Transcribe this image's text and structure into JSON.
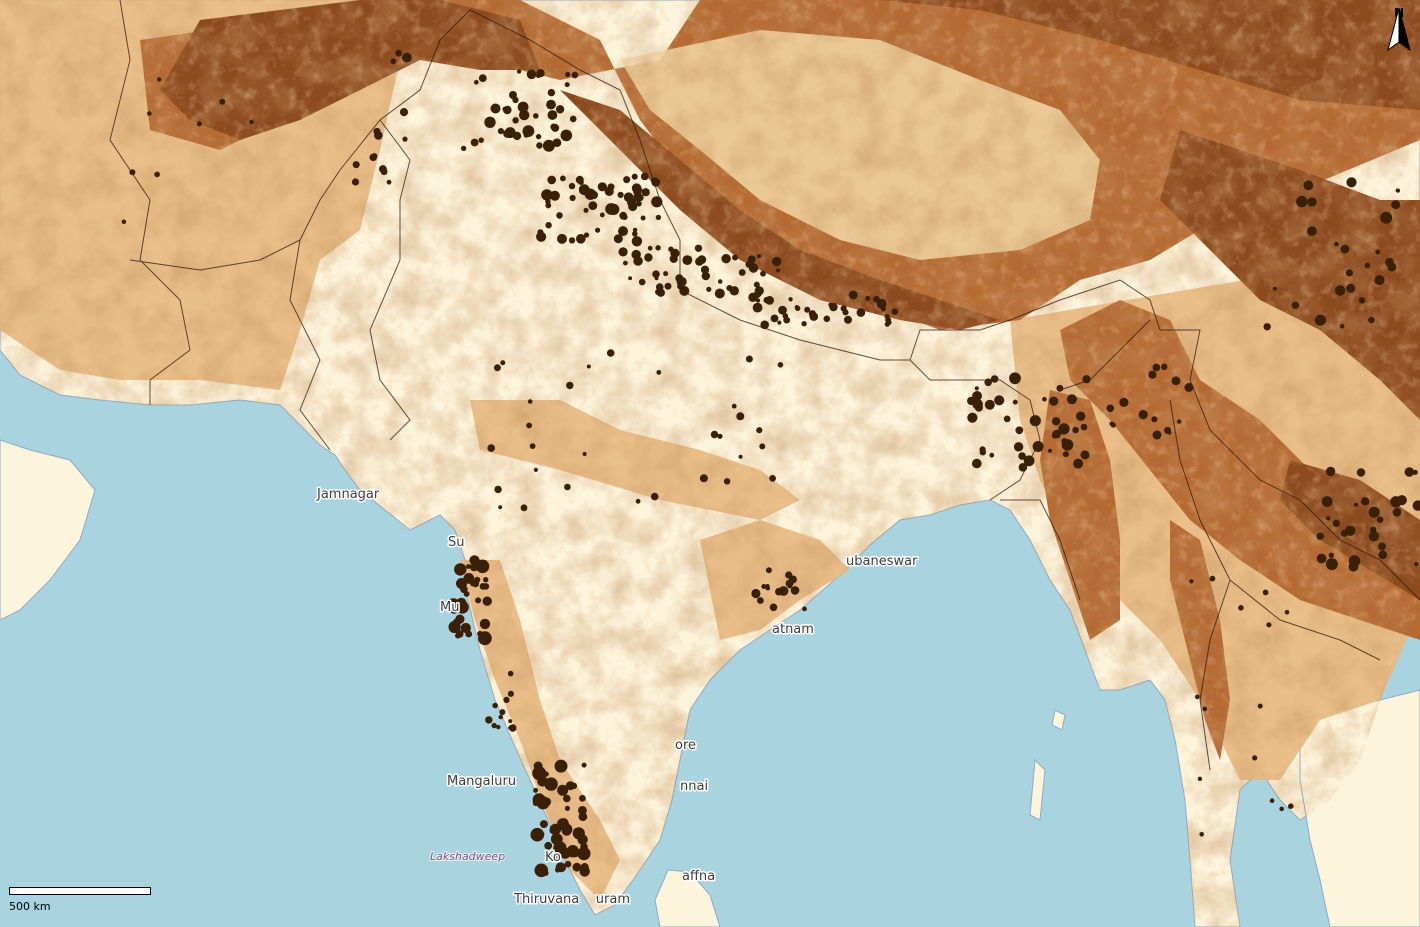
{
  "map": {
    "north_arrow": {
      "label": "N"
    },
    "scale_bar": {
      "label": "500 km"
    },
    "place_labels": [
      {
        "id": "jamnagar",
        "text": "Jamnagar"
      },
      {
        "id": "surat",
        "text": "Su"
      },
      {
        "id": "mumbai",
        "text": "Mu"
      },
      {
        "id": "bhubaneswar",
        "text": "ubaneswar"
      },
      {
        "id": "visakhapatnam",
        "text": "atnam"
      },
      {
        "id": "bangalore",
        "text": "ore"
      },
      {
        "id": "mangaluru",
        "text": "Mangaluru"
      },
      {
        "id": "chennai",
        "text": "nnai"
      },
      {
        "id": "lakshadweep",
        "text": "Lakshadweep"
      },
      {
        "id": "kochi",
        "text": "Ko"
      },
      {
        "id": "jaffna",
        "text": "affna"
      },
      {
        "id": "thiruvananthapuram",
        "text": "Thiruvana    uram"
      }
    ],
    "colors": {
      "sea": "#a9d3df",
      "land_low": "#fdf4dc",
      "land_mid": "#e8b87f",
      "land_high": "#b56a33",
      "land_peak": "#8c4a1f",
      "points": "#3b2008",
      "borders": "#2a1a10",
      "coast": "#8fa9c7"
    },
    "legend": "occurrence points shown as dark dots over elevation/habitat suitability shading"
  }
}
